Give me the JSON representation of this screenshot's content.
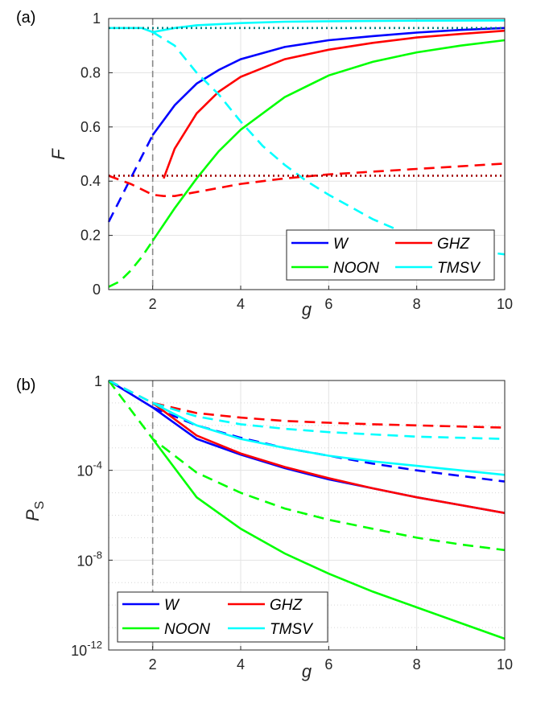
{
  "chart_data": [
    {
      "type": "line",
      "panel_label": "(a)",
      "xlabel": "g",
      "ylabel": "F",
      "xlim": [
        1,
        10
      ],
      "ylim": [
        0,
        1
      ],
      "xticks": [
        2,
        4,
        6,
        8,
        10
      ],
      "xtick_labels": [
        "2",
        "4",
        "6",
        "8",
        "10"
      ],
      "yticks": [
        0,
        0.2,
        0.4,
        0.6,
        0.8,
        1
      ],
      "ytick_labels": [
        "0",
        "0.2",
        "0.4",
        "0.6",
        "0.8",
        "1"
      ],
      "vline_x": 2,
      "legend": {
        "placement": "bottom-right",
        "entries": [
          "W",
          "GHZ",
          "NOON",
          "TMSV"
        ]
      },
      "series": [
        {
          "name": "W",
          "color": "#0000ff",
          "solid": [
            [
              2,
              0.57
            ],
            [
              2.5,
              0.68
            ],
            [
              3,
              0.76
            ],
            [
              3.5,
              0.81
            ],
            [
              4,
              0.85
            ],
            [
              5,
              0.895
            ],
            [
              6,
              0.92
            ],
            [
              7,
              0.935
            ],
            [
              8,
              0.948
            ],
            [
              9,
              0.958
            ],
            [
              10,
              0.965
            ]
          ],
          "dashed": [
            [
              1,
              0.25
            ],
            [
              1.25,
              0.33
            ],
            [
              1.5,
              0.41
            ],
            [
              1.75,
              0.49
            ],
            [
              2,
              0.57
            ]
          ]
        },
        {
          "name": "GHZ",
          "color": "#ff0000",
          "solid": [
            [
              2.25,
              0.41
            ],
            [
              2.5,
              0.52
            ],
            [
              3,
              0.65
            ],
            [
              3.5,
              0.73
            ],
            [
              4,
              0.785
            ],
            [
              5,
              0.85
            ],
            [
              6,
              0.885
            ],
            [
              7,
              0.91
            ],
            [
              8,
              0.93
            ],
            [
              9,
              0.943
            ],
            [
              10,
              0.955
            ]
          ],
          "dashed": [
            [
              1,
              0.42
            ],
            [
              1.5,
              0.39
            ],
            [
              2,
              0.35
            ],
            [
              2.25,
              0.345
            ],
            [
              2.5,
              0.345
            ],
            [
              3,
              0.36
            ],
            [
              4,
              0.39
            ],
            [
              5,
              0.41
            ],
            [
              6,
              0.425
            ],
            [
              7,
              0.435
            ],
            [
              8,
              0.445
            ],
            [
              9,
              0.455
            ],
            [
              10,
              0.465
            ]
          ]
        },
        {
          "name": "NOON",
          "color": "#00ff00",
          "solid": [
            [
              2,
              0.18
            ],
            [
              2.5,
              0.3
            ],
            [
              3,
              0.41
            ],
            [
              3.5,
              0.51
            ],
            [
              4,
              0.59
            ],
            [
              5,
              0.71
            ],
            [
              6,
              0.79
            ],
            [
              7,
              0.84
            ],
            [
              8,
              0.875
            ],
            [
              9,
              0.9
            ],
            [
              10,
              0.92
            ]
          ],
          "dashed": [
            [
              1,
              0.01
            ],
            [
              1.25,
              0.03
            ],
            [
              1.5,
              0.07
            ],
            [
              1.75,
              0.12
            ],
            [
              2,
              0.18
            ]
          ]
        },
        {
          "name": "TMSV",
          "color": "#00ffff",
          "solid": [
            [
              1,
              0.965
            ],
            [
              1.75,
              0.965
            ],
            [
              2,
              0.95
            ],
            [
              2.5,
              0.965
            ],
            [
              3,
              0.975
            ],
            [
              4,
              0.983
            ],
            [
              5,
              0.988
            ],
            [
              6,
              0.99
            ],
            [
              8,
              0.992
            ],
            [
              10,
              0.993
            ]
          ],
          "dashed": [
            [
              2,
              0.95
            ],
            [
              2.5,
              0.9
            ],
            [
              3,
              0.8
            ],
            [
              3.5,
              0.72
            ],
            [
              4,
              0.62
            ],
            [
              4.5,
              0.53
            ],
            [
              5,
              0.46
            ],
            [
              5.5,
              0.4
            ],
            [
              6,
              0.35
            ],
            [
              7,
              0.26
            ],
            [
              8,
              0.19
            ],
            [
              9,
              0.15
            ],
            [
              10,
              0.13
            ]
          ]
        }
      ],
      "reference_lines": [
        {
          "y": 0.965,
          "color": "#008080",
          "style": "dotted"
        },
        {
          "y": 0.42,
          "color": "#a00000",
          "style": "dotted"
        }
      ]
    },
    {
      "type": "line",
      "panel_label": "(b)",
      "xlabel": "g",
      "ylabel": "P",
      "ylabel_subscript": "S",
      "yscale": "log",
      "xlim": [
        1,
        10
      ],
      "ylim_log10": [
        -12,
        0
      ],
      "xticks": [
        2,
        4,
        6,
        8,
        10
      ],
      "xtick_labels": [
        "2",
        "4",
        "6",
        "8",
        "10"
      ],
      "ytick_log10": [
        0,
        -4,
        -8,
        -12
      ],
      "ytick_labels": [
        {
          "base": "1",
          "exp": ""
        },
        {
          "base": "10",
          "exp": "-4"
        },
        {
          "base": "10",
          "exp": "-8"
        },
        {
          "base": "10",
          "exp": "-12"
        }
      ],
      "vline_x": 2,
      "legend": {
        "placement": "bottom-left",
        "entries": [
          "W",
          "GHZ",
          "NOON",
          "TMSV"
        ]
      },
      "series": [
        {
          "name": "W",
          "color": "#0000ff",
          "solid_log10": [
            [
              1,
              0
            ],
            [
              2,
              -1.2
            ],
            [
              3,
              -2.6
            ],
            [
              4,
              -3.3
            ],
            [
              5,
              -3.9
            ],
            [
              6,
              -4.4
            ],
            [
              7,
              -4.8
            ],
            [
              8,
              -5.2
            ],
            [
              9,
              -5.55
            ],
            [
              10,
              -5.9
            ]
          ],
          "dashed_log10": [
            [
              2,
              -1.2
            ],
            [
              3,
              -2.0
            ],
            [
              4,
              -2.55
            ],
            [
              5,
              -3.0
            ],
            [
              6,
              -3.35
            ],
            [
              7,
              -3.7
            ],
            [
              8,
              -4.0
            ],
            [
              9,
              -4.25
            ],
            [
              10,
              -4.5
            ]
          ]
        },
        {
          "name": "GHZ",
          "color": "#ff0000",
          "solid_log10": [
            [
              2,
              -1.0
            ],
            [
              3,
              -2.45
            ],
            [
              4,
              -3.25
            ],
            [
              5,
              -3.85
            ],
            [
              6,
              -4.35
            ],
            [
              7,
              -4.8
            ],
            [
              8,
              -5.2
            ],
            [
              9,
              -5.55
            ],
            [
              10,
              -5.9
            ]
          ],
          "dashed_log10": [
            [
              1,
              0
            ],
            [
              2,
              -1.0
            ],
            [
              3,
              -1.45
            ],
            [
              4,
              -1.65
            ],
            [
              5,
              -1.8
            ],
            [
              6,
              -1.88
            ],
            [
              7,
              -1.95
            ],
            [
              8,
              -2.0
            ],
            [
              9,
              -2.05
            ],
            [
              10,
              -2.1
            ]
          ]
        },
        {
          "name": "NOON",
          "color": "#00ff00",
          "solid_log10": [
            [
              2,
              -2.6
            ],
            [
              3,
              -5.2
            ],
            [
              4,
              -6.6
            ],
            [
              5,
              -7.7
            ],
            [
              6,
              -8.6
            ],
            [
              7,
              -9.4
            ],
            [
              8,
              -10.1
            ],
            [
              9,
              -10.8
            ],
            [
              10,
              -11.5
            ]
          ],
          "dashed_log10": [
            [
              1,
              0
            ],
            [
              2,
              -2.6
            ],
            [
              3,
              -4.1
            ],
            [
              4,
              -5.0
            ],
            [
              5,
              -5.7
            ],
            [
              6,
              -6.2
            ],
            [
              7,
              -6.6
            ],
            [
              8,
              -7.0
            ],
            [
              9,
              -7.3
            ],
            [
              10,
              -7.55
            ]
          ]
        },
        {
          "name": "TMSV",
          "color": "#00ffff",
          "solid_log10": [
            [
              2,
              -1.0
            ],
            [
              3,
              -2.0
            ],
            [
              4,
              -2.6
            ],
            [
              5,
              -3.0
            ],
            [
              6,
              -3.35
            ],
            [
              7,
              -3.6
            ],
            [
              8,
              -3.8
            ],
            [
              9,
              -4.0
            ],
            [
              10,
              -4.2
            ]
          ],
          "dashed_log10": [
            [
              1,
              0
            ],
            [
              2,
              -1.0
            ],
            [
              3,
              -1.6
            ],
            [
              4,
              -1.95
            ],
            [
              5,
              -2.15
            ],
            [
              6,
              -2.3
            ],
            [
              7,
              -2.4
            ],
            [
              8,
              -2.5
            ],
            [
              9,
              -2.55
            ],
            [
              10,
              -2.6
            ]
          ]
        }
      ]
    }
  ]
}
